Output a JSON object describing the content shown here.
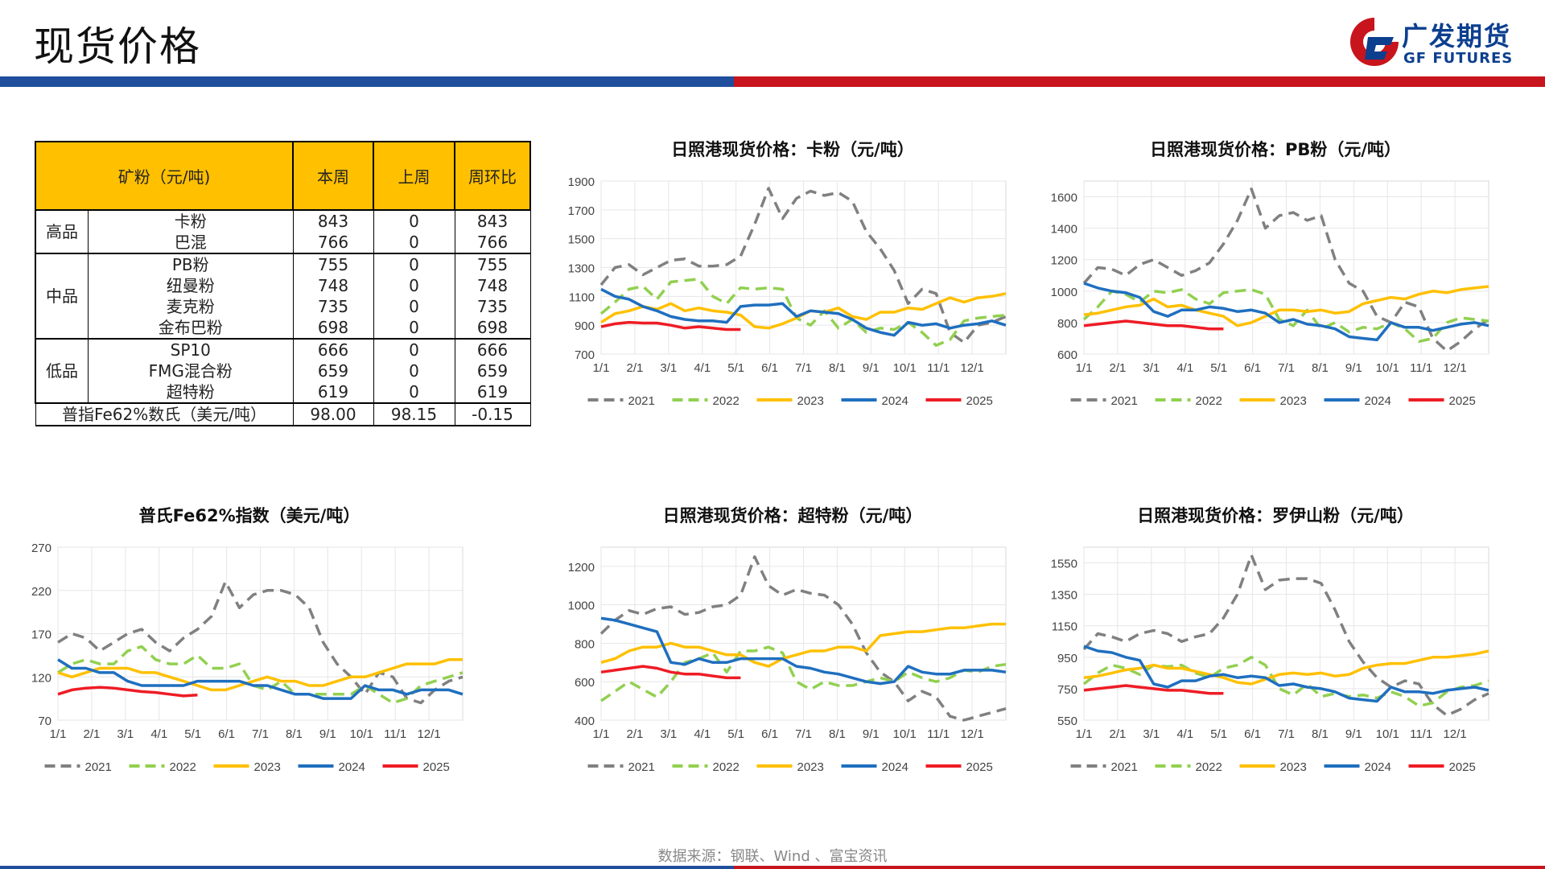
{
  "page": {
    "title": "现货价格",
    "logo_cn": "广发期货",
    "logo_en": "GF FUTURES",
    "source": "数据来源：钢联、Wind 、富宝资讯"
  },
  "colors": {
    "header_blue": "#1f4e9c",
    "header_red": "#c8141c",
    "table_header": "#ffc000",
    "series": {
      "2021": "#808080",
      "2022": "#92d050",
      "2023": "#ffc000",
      "2024": "#1f6fbf",
      "2025": "#ee1c25"
    }
  },
  "table": {
    "headers": [
      "矿粉（元/吨)",
      "本周",
      "上周",
      "周环比"
    ],
    "groups": [
      {
        "name": "高品",
        "rows": [
          [
            "卡粉",
            "843",
            "0",
            "843"
          ],
          [
            "巴混",
            "766",
            "0",
            "766"
          ]
        ]
      },
      {
        "name": "中品",
        "rows": [
          [
            "PB粉",
            "755",
            "0",
            "755"
          ],
          [
            "纽曼粉",
            "748",
            "0",
            "748"
          ],
          [
            "麦克粉",
            "735",
            "0",
            "735"
          ],
          [
            "金布巴粉",
            "698",
            "0",
            "698"
          ]
        ]
      },
      {
        "name": "低品",
        "rows": [
          [
            "SP10",
            "666",
            "0",
            "666"
          ],
          [
            "FMG混合粉",
            "659",
            "0",
            "659"
          ],
          [
            "超特粉",
            "619",
            "0",
            "619"
          ]
        ]
      }
    ],
    "index_row": [
      "普指Fe62%数氏（美元/吨）",
      "98.00",
      "98.15",
      "-0.15"
    ]
  },
  "chart_data": [
    {
      "type": "line",
      "title": "日照港现货价格：卡粉（元/吨）",
      "x_ticks": [
        "1/1",
        "2/1",
        "3/1",
        "4/1",
        "5/1",
        "6/1",
        "7/1",
        "8/1",
        "9/1",
        "10/1",
        "11/1",
        "12/1"
      ],
      "ylim": [
        700,
        1900
      ],
      "y_ticks": [
        700,
        900,
        1100,
        1300,
        1500,
        1700,
        1900
      ],
      "series": [
        {
          "name": "2021",
          "style": "dash",
          "values": [
            1180,
            1300,
            1320,
            1250,
            1300,
            1350,
            1360,
            1310,
            1310,
            1320,
            1380,
            1600,
            1850,
            1640,
            1780,
            1830,
            1800,
            1820,
            1760,
            1550,
            1430,
            1280,
            1050,
            1150,
            1120,
            850,
            780,
            900,
            920,
            960
          ]
        },
        {
          "name": "2022",
          "style": "dash",
          "values": [
            980,
            1060,
            1150,
            1170,
            1080,
            1200,
            1210,
            1220,
            1100,
            1050,
            1160,
            1150,
            1160,
            1150,
            950,
            900,
            1000,
            880,
            940,
            850,
            880,
            870,
            920,
            850,
            760,
            800,
            930,
            950,
            960,
            970
          ]
        },
        {
          "name": "2023",
          "style": "solid",
          "values": [
            920,
            980,
            1000,
            1030,
            1010,
            1050,
            1000,
            1020,
            1000,
            990,
            970,
            890,
            880,
            910,
            950,
            1000,
            990,
            1020,
            960,
            940,
            990,
            990,
            1020,
            1010,
            1050,
            1090,
            1060,
            1090,
            1100,
            1120
          ]
        },
        {
          "name": "2024",
          "style": "solid",
          "values": [
            1150,
            1100,
            1080,
            1030,
            1000,
            960,
            940,
            930,
            930,
            920,
            1030,
            1040,
            1040,
            1050,
            960,
            1000,
            990,
            980,
            940,
            880,
            850,
            830,
            920,
            900,
            910,
            880,
            900,
            910,
            930,
            900
          ]
        },
        {
          "name": "2025",
          "style": "solid",
          "values": [
            890,
            910,
            920,
            915,
            915,
            900,
            880,
            890,
            880,
            870,
            870
          ]
        }
      ]
    },
    {
      "type": "line",
      "title": "日照港现货价格：PB粉（元/吨）",
      "x_ticks": [
        "1/1",
        "2/1",
        "3/1",
        "4/1",
        "5/1",
        "6/1",
        "7/1",
        "8/1",
        "9/1",
        "10/1",
        "11/1",
        "12/1"
      ],
      "ylim": [
        600,
        1700
      ],
      "y_ticks": [
        600,
        800,
        1000,
        1200,
        1400,
        1600
      ],
      "series": [
        {
          "name": "2021",
          "style": "dash",
          "values": [
            1050,
            1150,
            1140,
            1100,
            1170,
            1200,
            1150,
            1100,
            1130,
            1180,
            1300,
            1450,
            1650,
            1400,
            1480,
            1500,
            1450,
            1480,
            1200,
            1050,
            1000,
            840,
            800,
            930,
            900,
            700,
            620,
            680,
            760,
            820
          ]
        },
        {
          "name": "2022",
          "style": "dash",
          "values": [
            820,
            900,
            1000,
            980,
            930,
            1000,
            990,
            1010,
            950,
            920,
            990,
            1000,
            1010,
            980,
            820,
            780,
            880,
            760,
            800,
            740,
            770,
            760,
            800,
            760,
            680,
            700,
            800,
            830,
            820,
            810
          ]
        },
        {
          "name": "2023",
          "style": "solid",
          "values": [
            850,
            860,
            880,
            900,
            910,
            950,
            900,
            910,
            880,
            860,
            840,
            780,
            800,
            840,
            880,
            880,
            870,
            880,
            860,
            870,
            920,
            940,
            960,
            950,
            980,
            1000,
            990,
            1010,
            1020,
            1030
          ]
        },
        {
          "name": "2024",
          "style": "solid",
          "values": [
            1050,
            1020,
            1000,
            990,
            960,
            870,
            840,
            880,
            880,
            900,
            890,
            870,
            880,
            860,
            800,
            820,
            790,
            780,
            760,
            710,
            700,
            690,
            800,
            770,
            770,
            750,
            770,
            790,
            800,
            780
          ]
        },
        {
          "name": "2025",
          "style": "solid",
          "values": [
            780,
            790,
            800,
            810,
            800,
            790,
            780,
            780,
            770,
            760,
            760
          ]
        }
      ]
    },
    {
      "type": "line",
      "title": "普氏Fe62%指数（美元/吨）",
      "x_ticks": [
        "1/1",
        "2/1",
        "3/1",
        "4/1",
        "5/1",
        "6/1",
        "7/1",
        "8/1",
        "9/1",
        "10/1",
        "11/1",
        "12/1"
      ],
      "ylim": [
        70,
        270
      ],
      "y_ticks": [
        70,
        120,
        170,
        220,
        270
      ],
      "series": [
        {
          "name": "2021",
          "style": "dash",
          "values": [
            160,
            170,
            165,
            150,
            160,
            170,
            175,
            160,
            150,
            165,
            175,
            190,
            230,
            200,
            215,
            220,
            220,
            215,
            200,
            160,
            135,
            120,
            100,
            125,
            120,
            95,
            90,
            105,
            115,
            120
          ]
        },
        {
          "name": "2022",
          "style": "dash",
          "values": [
            125,
            135,
            140,
            135,
            135,
            150,
            155,
            140,
            135,
            135,
            145,
            130,
            130,
            135,
            110,
            105,
            115,
            100,
            100,
            100,
            100,
            100,
            110,
            100,
            90,
            95,
            110,
            115,
            120,
            125
          ]
        },
        {
          "name": "2023",
          "style": "solid",
          "values": [
            125,
            120,
            125,
            130,
            130,
            130,
            125,
            125,
            120,
            115,
            110,
            105,
            105,
            110,
            115,
            120,
            115,
            115,
            110,
            110,
            115,
            120,
            120,
            125,
            130,
            135,
            135,
            135,
            140,
            140
          ]
        },
        {
          "name": "2024",
          "style": "solid",
          "values": [
            140,
            130,
            130,
            125,
            125,
            115,
            110,
            110,
            110,
            110,
            115,
            115,
            115,
            115,
            110,
            110,
            105,
            100,
            100,
            95,
            95,
            95,
            110,
            105,
            105,
            100,
            105,
            105,
            105,
            100
          ]
        },
        {
          "name": "2025",
          "style": "solid",
          "values": [
            100,
            105,
            107,
            108,
            107,
            105,
            103,
            102,
            100,
            98,
            99
          ]
        }
      ]
    },
    {
      "type": "line",
      "title": "日照港现货价格：超特粉（元/吨）",
      "x_ticks": [
        "1/1",
        "2/1",
        "3/1",
        "4/1",
        "5/1",
        "6/1",
        "7/1",
        "8/1",
        "9/1",
        "10/1",
        "11/1",
        "12/1"
      ],
      "ylim": [
        400,
        1300
      ],
      "y_ticks": [
        400,
        600,
        800,
        1000,
        1200
      ],
      "series": [
        {
          "name": "2021",
          "style": "dash",
          "values": [
            850,
            920,
            970,
            950,
            980,
            990,
            950,
            960,
            990,
            1000,
            1050,
            1250,
            1100,
            1050,
            1080,
            1060,
            1050,
            1000,
            900,
            750,
            650,
            600,
            500,
            550,
            520,
            420,
            400,
            420,
            440,
            460
          ]
        },
        {
          "name": "2022",
          "style": "dash",
          "values": [
            500,
            550,
            600,
            560,
            520,
            600,
            700,
            720,
            750,
            650,
            760,
            760,
            780,
            750,
            600,
            560,
            600,
            580,
            580,
            600,
            620,
            600,
            650,
            620,
            600,
            620,
            660,
            650,
            680,
            690
          ]
        },
        {
          "name": "2023",
          "style": "solid",
          "values": [
            700,
            720,
            760,
            780,
            780,
            800,
            780,
            780,
            760,
            740,
            740,
            700,
            680,
            720,
            740,
            760,
            760,
            780,
            780,
            760,
            840,
            850,
            860,
            860,
            870,
            880,
            880,
            890,
            900,
            900
          ]
        },
        {
          "name": "2024",
          "style": "solid",
          "values": [
            930,
            920,
            900,
            880,
            860,
            700,
            690,
            720,
            700,
            700,
            720,
            720,
            720,
            720,
            680,
            670,
            650,
            640,
            620,
            600,
            590,
            600,
            680,
            650,
            640,
            640,
            660,
            660,
            660,
            650
          ]
        },
        {
          "name": "2025",
          "style": "solid",
          "values": [
            650,
            660,
            670,
            680,
            670,
            650,
            640,
            640,
            630,
            620,
            620
          ]
        }
      ]
    },
    {
      "type": "line",
      "title": "日照港现货价格：罗伊山粉（元/吨）",
      "x_ticks": [
        "1/1",
        "2/1",
        "3/1",
        "4/1",
        "5/1",
        "6/1",
        "7/1",
        "8/1",
        "9/1",
        "10/1",
        "11/1",
        "12/1"
      ],
      "ylim": [
        550,
        1650
      ],
      "y_ticks": [
        550,
        750,
        950,
        1150,
        1350,
        1550
      ],
      "series": [
        {
          "name": "2021",
          "style": "dash",
          "values": [
            1000,
            1100,
            1080,
            1050,
            1100,
            1120,
            1100,
            1050,
            1080,
            1100,
            1200,
            1350,
            1600,
            1380,
            1440,
            1450,
            1450,
            1420,
            1250,
            1050,
            920,
            820,
            760,
            800,
            780,
            650,
            580,
            620,
            680,
            720
          ]
        },
        {
          "name": "2022",
          "style": "dash",
          "values": [
            780,
            850,
            900,
            880,
            840,
            900,
            890,
            900,
            850,
            820,
            880,
            900,
            950,
            900,
            750,
            710,
            780,
            700,
            720,
            700,
            710,
            690,
            730,
            700,
            640,
            660,
            730,
            760,
            770,
            800
          ]
        },
        {
          "name": "2023",
          "style": "solid",
          "values": [
            820,
            830,
            850,
            870,
            880,
            900,
            880,
            880,
            860,
            840,
            820,
            790,
            780,
            810,
            840,
            850,
            840,
            850,
            830,
            840,
            880,
            900,
            910,
            910,
            930,
            950,
            950,
            960,
            970,
            990
          ]
        },
        {
          "name": "2024",
          "style": "solid",
          "values": [
            1020,
            990,
            980,
            950,
            930,
            780,
            760,
            800,
            800,
            830,
            840,
            820,
            830,
            820,
            770,
            780,
            760,
            750,
            730,
            690,
            680,
            670,
            760,
            730,
            730,
            720,
            740,
            750,
            760,
            740
          ]
        },
        {
          "name": "2025",
          "style": "solid",
          "values": [
            740,
            750,
            760,
            770,
            760,
            750,
            740,
            740,
            730,
            720,
            720
          ]
        }
      ]
    }
  ]
}
